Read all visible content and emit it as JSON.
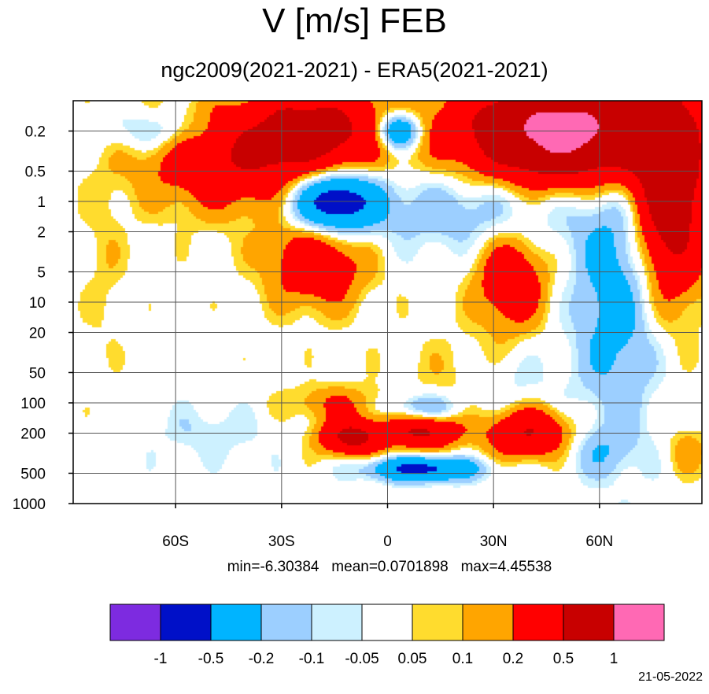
{
  "chart_data": {
    "type": "heatmap",
    "title": "V [m/s] FEB",
    "subtitle": "ngc2009(2021-2021) - ERA5(2021-2021)",
    "x_ticks": [
      "60S",
      "30S",
      "0",
      "30N",
      "60N"
    ],
    "x_tick_values": [
      -60,
      -30,
      0,
      30,
      60
    ],
    "xlim": [
      -89,
      89
    ],
    "y_ticks": [
      "0.2",
      "0.5",
      "1",
      "2",
      "5",
      "10",
      "20",
      "50",
      "100",
      "200",
      "500",
      "1000"
    ],
    "y_tick_values": [
      0.2,
      0.5,
      1,
      2,
      5,
      10,
      20,
      50,
      100,
      200,
      500,
      1000
    ],
    "y_scale": "log",
    "y_inverted": true,
    "ylim": [
      0.1,
      1000
    ],
    "grid": true,
    "stats": {
      "min": "min=-6.30384",
      "mean": "mean=0.0701898",
      "max": "max=4.45538"
    },
    "colorbar": {
      "labels": [
        "-1",
        "-0.5",
        "-0.2",
        "-0.1",
        "-0.05",
        "0.05",
        "0.1",
        "0.2",
        "0.5",
        "1"
      ],
      "levels": [
        -1,
        -0.5,
        -0.2,
        -0.1,
        -0.05,
        0.05,
        0.1,
        0.2,
        0.5,
        1
      ],
      "colors": [
        "#7d2be0",
        "#0010c8",
        "#00b4ff",
        "#9ccfff",
        "#cdf1ff",
        "#ffffff",
        "#ffdc2e",
        "#ffa500",
        "#ff0000",
        "#c80000",
        "#ff69b4"
      ]
    },
    "features": [
      {
        "lat": -65,
        "p": 0.2,
        "v": -0.2,
        "wx": 15,
        "wy": 0.2
      },
      {
        "lat": -45,
        "p": 0.4,
        "v": 0.4,
        "wx": 25,
        "wy": 0.5
      },
      {
        "lat": -20,
        "p": 0.2,
        "v": 0.6,
        "wx": 20,
        "wy": 0.45
      },
      {
        "lat": 3,
        "p": 0.2,
        "v": -0.6,
        "wx": 6,
        "wy": 0.18
      },
      {
        "lat": 50,
        "p": 0.2,
        "v": 1.2,
        "wx": 28,
        "wy": 0.5
      },
      {
        "lat": 80,
        "p": 0.8,
        "v": 0.8,
        "wx": 10,
        "wy": 1.0
      },
      {
        "lat": -15,
        "p": 1.0,
        "v": -0.8,
        "wx": 12,
        "wy": 0.3
      },
      {
        "lat": 25,
        "p": 1.2,
        "v": -0.2,
        "wx": 30,
        "wy": 0.4
      },
      {
        "lat": -20,
        "p": 4.0,
        "v": 0.4,
        "wx": 14,
        "wy": 0.45
      },
      {
        "lat": 35,
        "p": 6.0,
        "v": 0.4,
        "wx": 10,
        "wy": 0.5
      },
      {
        "lat": 65,
        "p": 8.0,
        "v": -0.3,
        "wx": 12,
        "wy": 1.3
      },
      {
        "lat": -80,
        "p": 4.0,
        "v": 0.08,
        "wx": 6,
        "wy": 0.9
      },
      {
        "lat": 20,
        "p": 50.0,
        "v": 0.08,
        "wx": 18,
        "wy": 0.4
      },
      {
        "lat": 35,
        "p": 60.0,
        "v": -0.1,
        "wx": 12,
        "wy": 0.35
      },
      {
        "lat": -15,
        "p": 100.0,
        "v": 0.2,
        "wx": 14,
        "wy": 0.18
      },
      {
        "lat": 10,
        "p": 120.0,
        "v": -0.4,
        "wx": 10,
        "wy": 0.15
      },
      {
        "lat": 10,
        "p": 180.0,
        "v": 0.6,
        "wx": 10,
        "wy": 0.2
      },
      {
        "lat": 40,
        "p": 200.0,
        "v": 0.5,
        "wx": 12,
        "wy": 0.25
      },
      {
        "lat": -10,
        "p": 220.0,
        "v": 0.6,
        "wx": 9,
        "wy": 0.18
      },
      {
        "lat": -50,
        "p": 200.0,
        "v": -0.1,
        "wx": 15,
        "wy": 0.25
      },
      {
        "lat": 10,
        "p": 450.0,
        "v": -0.6,
        "wx": 15,
        "wy": 0.12
      },
      {
        "lat": 85,
        "p": 300.0,
        "v": 0.15,
        "wx": 6,
        "wy": 0.25
      },
      {
        "lat": 60,
        "p": 300.0,
        "v": -0.15,
        "wx": 10,
        "wy": 0.25
      }
    ]
  }
}
